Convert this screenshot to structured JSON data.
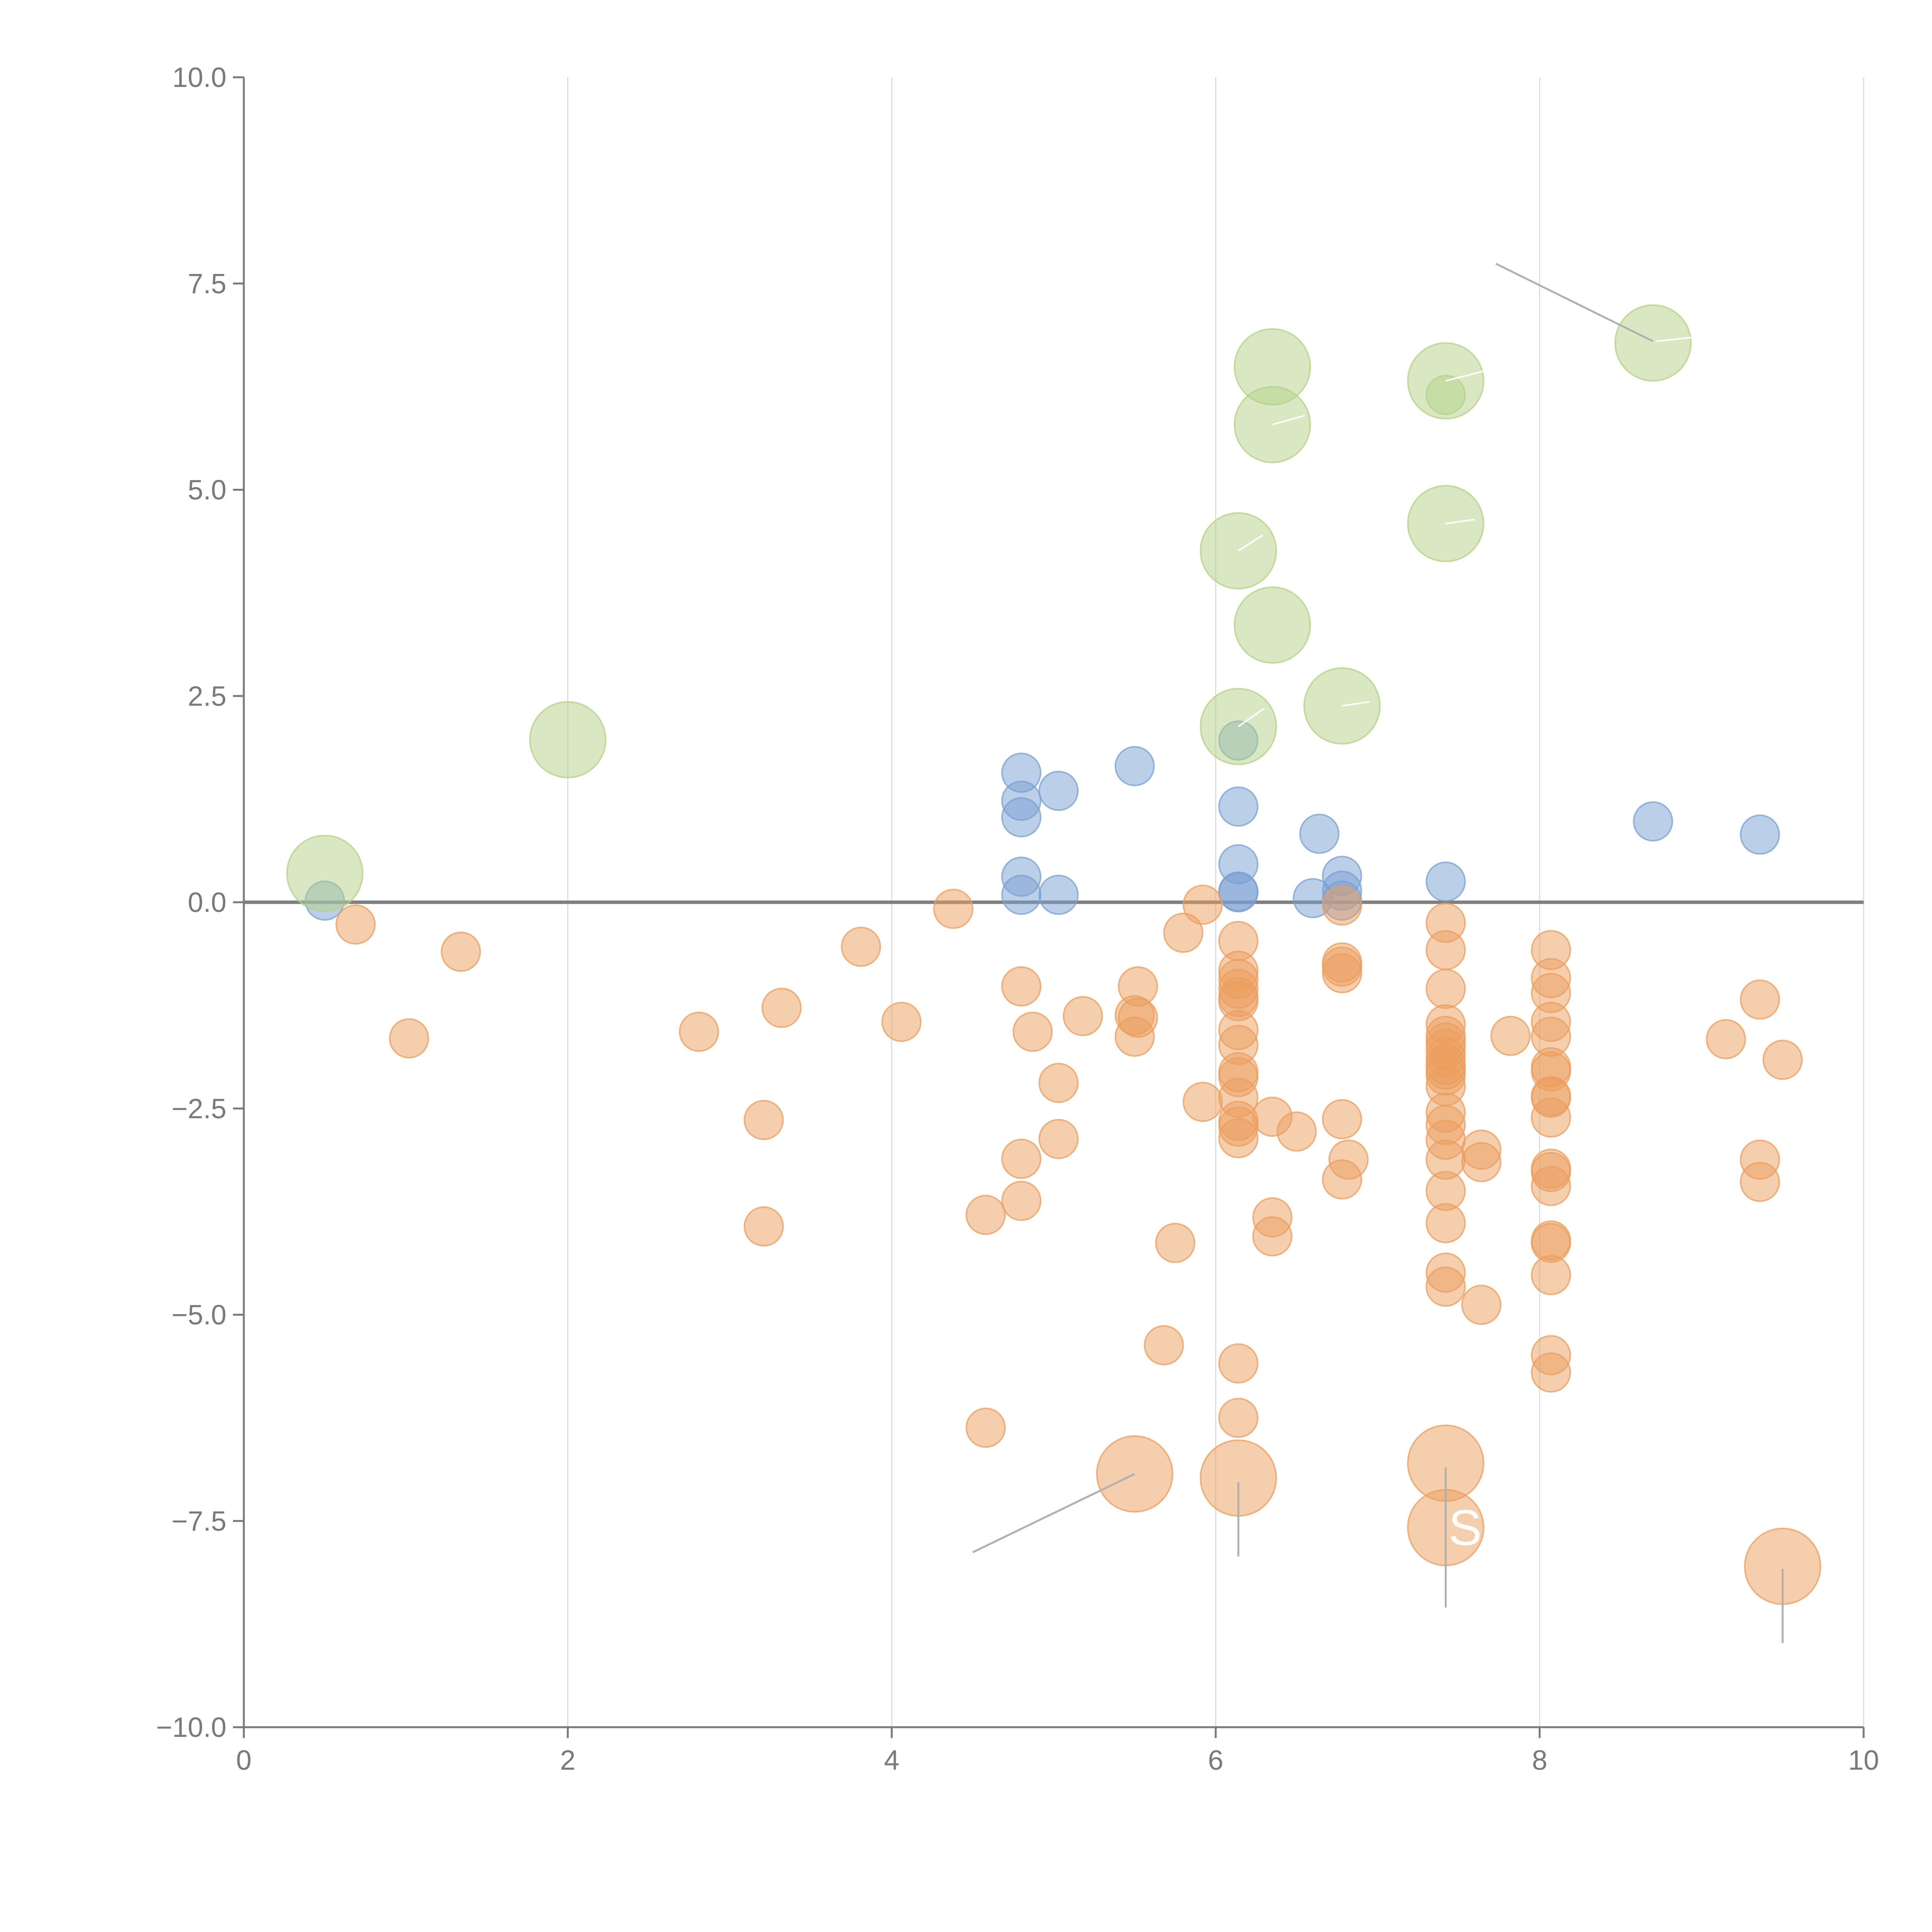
{
  "chart_data": {
    "type": "scatter",
    "title": "",
    "xlabel": "",
    "ylabel": "",
    "xlim": [
      0,
      10
    ],
    "ylim": [
      -10,
      10
    ],
    "x_ticks": [
      0,
      2,
      4,
      6,
      8,
      10
    ],
    "x_tick_labels": [
      "0",
      "2",
      "4",
      "6",
      "8",
      "10"
    ],
    "y_ticks": [
      -10,
      -7.5,
      -5,
      -2.5,
      0,
      2.5,
      5,
      7.5,
      10
    ],
    "y_tick_labels": [
      "−10.0",
      "−7.5",
      "−5.0",
      "−2.5",
      "0.0",
      "2.5",
      "5.0",
      "7.5",
      "10.0"
    ],
    "grid": "vertical lines at x ticks",
    "reference_line_y": 0,
    "colors": {
      "blue": "#7aa0d2",
      "orange": "#eb9e5e",
      "green": "#b4d287",
      "axis": "#7a7a7a",
      "grid": "#dcdcdc",
      "zero_line": "#7f7f7f",
      "connector": "#b0b0b0"
    },
    "series": [
      {
        "name": "blue",
        "color": "#7aa0d2",
        "size": "small",
        "points": [
          [
            0.5,
            0.02
          ],
          [
            4.8,
            1.57
          ],
          [
            4.8,
            1.23
          ],
          [
            4.8,
            1.03
          ],
          [
            5.03,
            1.35
          ],
          [
            4.8,
            0.31
          ],
          [
            4.8,
            0.09
          ],
          [
            5.03,
            0.09
          ],
          [
            5.5,
            1.65
          ],
          [
            6.14,
            1.96
          ],
          [
            6.14,
            1.16
          ],
          [
            6.14,
            0.46
          ],
          [
            6.14,
            0.13
          ],
          [
            6.14,
            0.12
          ],
          [
            6.64,
            0.83
          ],
          [
            6.6,
            0.05
          ],
          [
            6.78,
            0.32
          ],
          [
            6.78,
            0.14
          ],
          [
            6.78,
            0.02
          ],
          [
            7.42,
            0.25
          ],
          [
            8.7,
            0.98
          ],
          [
            9.36,
            0.82
          ]
        ]
      },
      {
        "name": "orange",
        "color": "#eb9e5e",
        "size": "small",
        "points": [
          [
            0.69,
            -0.27
          ],
          [
            1.02,
            -1.65
          ],
          [
            1.34,
            -0.6
          ],
          [
            2.81,
            -1.57
          ],
          [
            3.21,
            -2.64
          ],
          [
            3.21,
            -3.93
          ],
          [
            3.32,
            -1.28
          ],
          [
            3.81,
            -0.54
          ],
          [
            4.06,
            -1.45
          ],
          [
            4.38,
            -0.08
          ],
          [
            4.58,
            -3.79
          ],
          [
            4.58,
            -6.37
          ],
          [
            4.8,
            -1.02
          ],
          [
            4.8,
            -3.11
          ],
          [
            4.8,
            -3.62
          ],
          [
            4.87,
            -1.57
          ],
          [
            5.03,
            -2.19
          ],
          [
            5.03,
            -2.87
          ],
          [
            5.18,
            -1.38
          ],
          [
            5.5,
            -1.37
          ],
          [
            5.5,
            -1.63
          ],
          [
            5.52,
            -1.02
          ],
          [
            5.52,
            -1.4
          ],
          [
            5.68,
            -5.37
          ],
          [
            5.75,
            -4.13
          ],
          [
            5.8,
            -0.37
          ],
          [
            5.92,
            -0.03
          ],
          [
            5.92,
            -2.42
          ],
          [
            6.14,
            -0.47
          ],
          [
            6.14,
            -0.83
          ],
          [
            6.14,
            -0.93
          ],
          [
            6.14,
            -1.05
          ],
          [
            6.14,
            -1.15
          ],
          [
            6.14,
            -1.2
          ],
          [
            6.14,
            -1.55
          ],
          [
            6.14,
            -1.73
          ],
          [
            6.14,
            -2.06
          ],
          [
            6.14,
            -2.12
          ],
          [
            6.14,
            -2.37
          ],
          [
            6.14,
            -2.65
          ],
          [
            6.14,
            -2.72
          ],
          [
            6.14,
            -2.86
          ],
          [
            6.14,
            -5.59
          ],
          [
            6.14,
            -6.25
          ],
          [
            6.35,
            -2.6
          ],
          [
            6.35,
            -3.82
          ],
          [
            6.35,
            -4.05
          ],
          [
            6.5,
            -2.78
          ],
          [
            6.78,
            -0.04
          ],
          [
            6.78,
            -0.73
          ],
          [
            6.78,
            -0.78
          ],
          [
            6.78,
            -0.86
          ],
          [
            6.78,
            -2.63
          ],
          [
            6.78,
            -3.36
          ],
          [
            6.82,
            -3.12
          ],
          [
            7.42,
            -0.25
          ],
          [
            7.42,
            -0.58
          ],
          [
            7.42,
            -1.05
          ],
          [
            7.42,
            -1.48
          ],
          [
            7.42,
            -1.62
          ],
          [
            7.42,
            -1.7
          ],
          [
            7.42,
            -1.78
          ],
          [
            7.42,
            -1.88
          ],
          [
            7.42,
            -1.97
          ],
          [
            7.42,
            -2.03
          ],
          [
            7.42,
            -2.1
          ],
          [
            7.42,
            -2.23
          ],
          [
            7.42,
            -2.55
          ],
          [
            7.42,
            -2.7
          ],
          [
            7.42,
            -2.88
          ],
          [
            7.42,
            -3.12
          ],
          [
            7.42,
            -3.5
          ],
          [
            7.42,
            -3.89
          ],
          [
            7.42,
            -4.49
          ],
          [
            7.42,
            -4.66
          ],
          [
            7.64,
            -3.0
          ],
          [
            7.64,
            -3.15
          ],
          [
            7.64,
            -4.88
          ],
          [
            7.82,
            -1.62
          ],
          [
            8.07,
            -0.58
          ],
          [
            8.07,
            -0.92
          ],
          [
            8.07,
            -1.1
          ],
          [
            8.07,
            -1.45
          ],
          [
            8.07,
            -1.63
          ],
          [
            8.07,
            -2.0
          ],
          [
            8.07,
            -2.05
          ],
          [
            8.07,
            -2.35
          ],
          [
            8.07,
            -2.37
          ],
          [
            8.07,
            -2.61
          ],
          [
            8.07,
            -3.23
          ],
          [
            8.07,
            -3.27
          ],
          [
            8.07,
            -3.44
          ],
          [
            8.07,
            -4.1
          ],
          [
            8.07,
            -4.13
          ],
          [
            8.07,
            -4.52
          ],
          [
            8.07,
            -5.49
          ],
          [
            8.07,
            -5.7
          ],
          [
            9.15,
            -1.66
          ],
          [
            9.36,
            -1.18
          ],
          [
            9.36,
            -3.12
          ],
          [
            9.36,
            -3.39
          ],
          [
            9.5,
            -1.91
          ]
        ]
      },
      {
        "name": "orange-large",
        "color": "#eb9e5e",
        "size": "large",
        "points": [
          [
            5.5,
            -6.93
          ],
          [
            6.14,
            -6.98
          ],
          [
            7.42,
            -6.8
          ],
          [
            7.42,
            -7.58
          ],
          [
            9.5,
            -8.05
          ]
        ]
      },
      {
        "name": "green",
        "color": "#b4d287",
        "size": "large",
        "points": [
          [
            0.5,
            0.35
          ],
          [
            2.0,
            1.97
          ],
          [
            6.14,
            2.13
          ],
          [
            6.14,
            4.26
          ],
          [
            6.35,
            3.36
          ],
          [
            6.35,
            5.79
          ],
          [
            6.35,
            6.49
          ],
          [
            6.78,
            2.38
          ],
          [
            7.42,
            4.59
          ],
          [
            7.42,
            6.32
          ],
          [
            8.7,
            6.78
          ]
        ]
      },
      {
        "name": "green-small",
        "color": "#b4d287",
        "size": "small",
        "points": [
          [
            7.42,
            6.15
          ]
        ]
      }
    ],
    "connectors": [
      {
        "from": [
          5.5,
          -6.93
        ],
        "to": [
          4.5,
          -7.88
        ],
        "color": "gray"
      },
      {
        "from": [
          6.14,
          -7.03
        ],
        "to": [
          6.14,
          -7.93
        ],
        "color": "gray"
      },
      {
        "from": [
          7.42,
          -6.85
        ],
        "to": [
          7.42,
          -8.55
        ],
        "color": "gray"
      },
      {
        "from": [
          9.5,
          -8.08
        ],
        "to": [
          9.5,
          -8.98
        ],
        "color": "gray"
      },
      {
        "from": [
          8.7,
          6.8
        ],
        "to": [
          7.73,
          7.74
        ],
        "color": "gray"
      },
      {
        "from": [
          8.72,
          6.8
        ],
        "to": [
          9.1,
          6.88
        ],
        "color": "white"
      },
      {
        "from": [
          7.42,
          6.32
        ],
        "to": [
          7.68,
          6.45
        ],
        "color": "white"
      },
      {
        "from": [
          6.35,
          5.79
        ],
        "to": [
          6.55,
          5.9
        ],
        "color": "white"
      },
      {
        "from": [
          6.14,
          4.26
        ],
        "to": [
          6.29,
          4.45
        ],
        "color": "white"
      },
      {
        "from": [
          7.42,
          4.59
        ],
        "to": [
          7.6,
          4.64
        ],
        "color": "white"
      },
      {
        "from": [
          6.78,
          2.38
        ],
        "to": [
          6.95,
          2.43
        ],
        "color": "white"
      },
      {
        "from": [
          6.14,
          2.13
        ],
        "to": [
          6.3,
          2.35
        ],
        "color": "white"
      }
    ],
    "annotations": [
      {
        "text": "S",
        "x": 7.54,
        "y": -7.58,
        "color": "#ffffff"
      }
    ]
  }
}
